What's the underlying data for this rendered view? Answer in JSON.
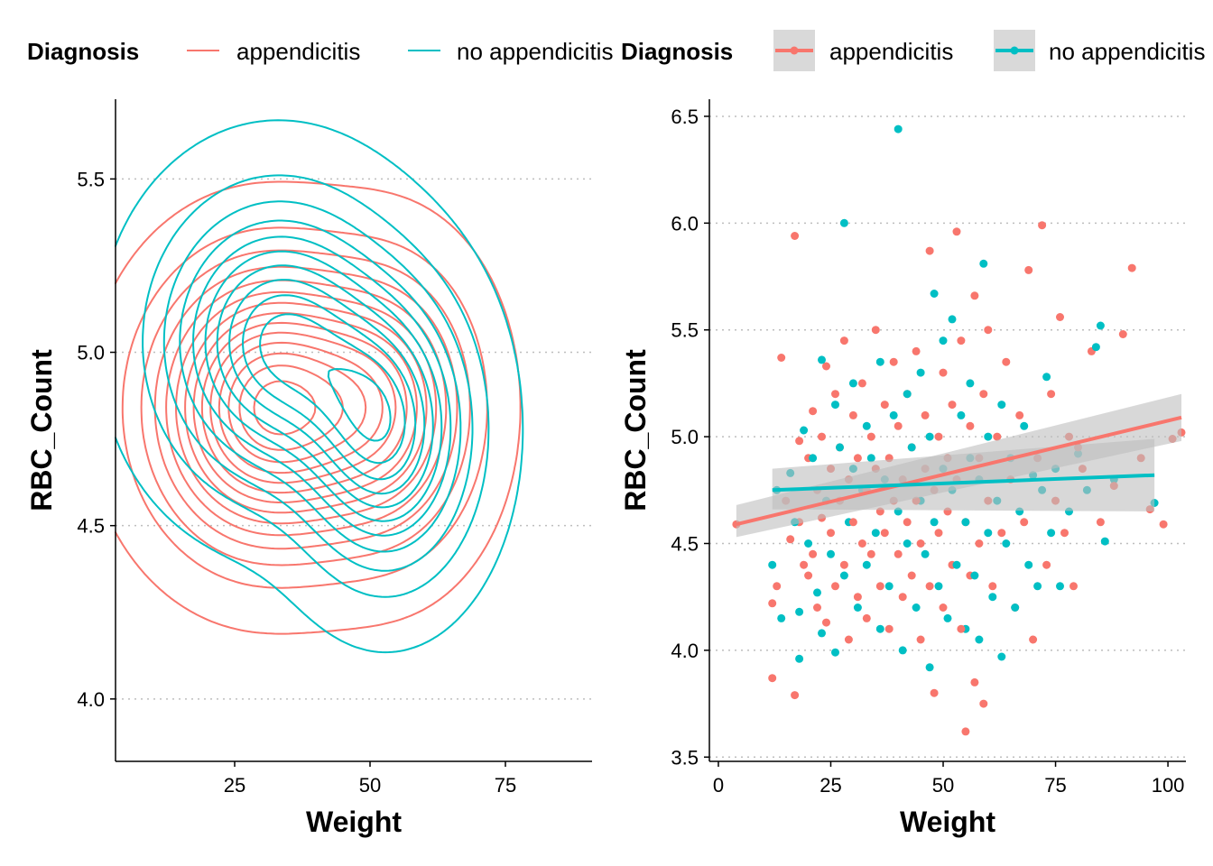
{
  "colors": {
    "appendicitis": "#F8766D",
    "no_appendicitis": "#00BFC4",
    "ribbon": "#BEBEBE",
    "grid": "#BEBEBE"
  },
  "chart_data": [
    {
      "type": "density_contour",
      "xlabel": "Weight",
      "ylabel": "RBC_Count",
      "xlim": [
        3,
        91
      ],
      "ylim": [
        3.82,
        5.73
      ],
      "xticks": [
        25,
        50,
        75
      ],
      "yticks": [
        4.0,
        4.5,
        5.0,
        5.5
      ],
      "grid": "horizontal dotted",
      "legend": {
        "title": "Diagnosis",
        "position": "top",
        "entries": [
          "appendicitis",
          "no appendicitis"
        ]
      },
      "series": [
        {
          "name": "appendicitis",
          "peaks": [
            {
              "x": 31,
              "y": 4.84,
              "sx": 12.5,
              "sy": 0.24,
              "w": 1.0
            },
            {
              "x": 53,
              "y": 4.84,
              "sx": 10,
              "sy": 0.24,
              "w": 0.55
            }
          ],
          "lo": 0.025,
          "hi": 0.95,
          "n": 14
        },
        {
          "name": "no appendicitis",
          "peaks": [
            {
              "x": 33,
              "y": 5.03,
              "sx": 12.5,
              "sy": 0.24,
              "w": 1.0
            },
            {
              "x": 53,
              "y": 4.77,
              "sx": 9.5,
              "sy": 0.24,
              "w": 0.95
            }
          ],
          "lo": 0.025,
          "hi": 0.95,
          "n": 11
        }
      ]
    },
    {
      "type": "scatter",
      "xlabel": "Weight",
      "ylabel": "RBC_Count",
      "xlim": [
        -2,
        104
      ],
      "ylim": [
        3.48,
        6.58
      ],
      "xticks": [
        0,
        25,
        50,
        75,
        100
      ],
      "yticks": [
        3.5,
        4.0,
        4.5,
        5.0,
        5.5,
        6.0,
        6.5
      ],
      "grid": "horizontal dotted",
      "legend": {
        "title": "Diagnosis",
        "position": "top",
        "entries": [
          "appendicitis",
          "no appendicitis"
        ]
      },
      "series": [
        {
          "name": "appendicitis",
          "fit": {
            "x": [
              4,
              103
            ],
            "y": [
              4.59,
              5.09
            ],
            "ci_lo": [
              4.53,
              4.98
            ],
            "ci_hi": [
              4.68,
              5.2
            ]
          },
          "points": [
            [
              4,
              4.59
            ],
            [
              12,
              3.87
            ],
            [
              12,
              4.22
            ],
            [
              13,
              4.3
            ],
            [
              14,
              5.37
            ],
            [
              15,
              4.7
            ],
            [
              16,
              4.52
            ],
            [
              17,
              5.94
            ],
            [
              17,
              3.79
            ],
            [
              18,
              4.98
            ],
            [
              18,
              4.6
            ],
            [
              19,
              4.4
            ],
            [
              20,
              4.35
            ],
            [
              20,
              4.9
            ],
            [
              21,
              5.12
            ],
            [
              21,
              4.45
            ],
            [
              22,
              4.75
            ],
            [
              22,
              4.2
            ],
            [
              23,
              5.0
            ],
            [
              23,
              4.62
            ],
            [
              24,
              4.13
            ],
            [
              24,
              5.33
            ],
            [
              25,
              4.85
            ],
            [
              25,
              4.55
            ],
            [
              26,
              5.2
            ],
            [
              26,
              4.3
            ],
            [
              27,
              4.95
            ],
            [
              27,
              4.7
            ],
            [
              28,
              4.4
            ],
            [
              28,
              5.45
            ],
            [
              29,
              4.05
            ],
            [
              29,
              4.8
            ],
            [
              30,
              4.6
            ],
            [
              30,
              5.1
            ],
            [
              31,
              4.25
            ],
            [
              31,
              4.9
            ],
            [
              32,
              5.25
            ],
            [
              32,
              4.5
            ],
            [
              33,
              4.75
            ],
            [
              33,
              4.15
            ],
            [
              34,
              5.0
            ],
            [
              34,
              4.45
            ],
            [
              35,
              5.5
            ],
            [
              35,
              4.85
            ],
            [
              36,
              4.3
            ],
            [
              36,
              4.65
            ],
            [
              37,
              5.15
            ],
            [
              37,
              4.55
            ],
            [
              38,
              4.9
            ],
            [
              38,
              4.1
            ],
            [
              39,
              4.7
            ],
            [
              39,
              5.35
            ],
            [
              40,
              4.45
            ],
            [
              40,
              5.05
            ],
            [
              41,
              4.8
            ],
            [
              41,
              4.25
            ],
            [
              42,
              5.2
            ],
            [
              42,
              4.6
            ],
            [
              43,
              4.95
            ],
            [
              43,
              4.35
            ],
            [
              44,
              5.4
            ],
            [
              44,
              4.7
            ],
            [
              45,
              4.5
            ],
            [
              45,
              4.05
            ],
            [
              46,
              5.1
            ],
            [
              46,
              4.85
            ],
            [
              47,
              4.3
            ],
            [
              47,
              5.87
            ],
            [
              48,
              4.75
            ],
            [
              48,
              3.8
            ],
            [
              49,
              5.0
            ],
            [
              49,
              4.55
            ],
            [
              50,
              4.2
            ],
            [
              50,
              5.3
            ],
            [
              51,
              4.65
            ],
            [
              51,
              4.9
            ],
            [
              52,
              5.15
            ],
            [
              52,
              4.4
            ],
            [
              53,
              5.96
            ],
            [
              53,
              4.8
            ],
            [
              54,
              4.1
            ],
            [
              54,
              5.45
            ],
            [
              55,
              3.62
            ],
            [
              55,
              4.6
            ],
            [
              56,
              5.05
            ],
            [
              56,
              4.35
            ],
            [
              57,
              5.66
            ],
            [
              57,
              3.85
            ],
            [
              58,
              4.9
            ],
            [
              58,
              4.5
            ],
            [
              59,
              5.2
            ],
            [
              59,
              3.75
            ],
            [
              60,
              4.7
            ],
            [
              60,
              5.5
            ],
            [
              61,
              4.3
            ],
            [
              62,
              5.0
            ],
            [
              63,
              4.55
            ],
            [
              64,
              5.35
            ],
            [
              65,
              4.8
            ],
            [
              66,
              4.2
            ],
            [
              67,
              5.1
            ],
            [
              68,
              4.6
            ],
            [
              69,
              5.78
            ],
            [
              70,
              4.05
            ],
            [
              71,
              4.9
            ],
            [
              72,
              5.99
            ],
            [
              73,
              4.4
            ],
            [
              74,
              5.2
            ],
            [
              75,
              4.7
            ],
            [
              76,
              5.56
            ],
            [
              77,
              4.55
            ],
            [
              78,
              5.0
            ],
            [
              79,
              4.3
            ],
            [
              80,
              4.95
            ],
            [
              81,
              4.85
            ],
            [
              83,
              5.4
            ],
            [
              85,
              4.6
            ],
            [
              88,
              4.77
            ],
            [
              90,
              5.48
            ],
            [
              92,
              5.79
            ],
            [
              94,
              4.9
            ],
            [
              96,
              4.66
            ],
            [
              99,
              4.59
            ],
            [
              101,
              4.99
            ],
            [
              103,
              5.02
            ]
          ]
        },
        {
          "name": "no appendicitis",
          "fit": {
            "x": [
              12,
              97
            ],
            "y": [
              4.75,
              4.82
            ],
            "ci_lo": [
              4.66,
              4.65
            ],
            "ci_hi": [
              4.85,
              4.99
            ]
          },
          "points": [
            [
              12,
              4.4
            ],
            [
              13,
              4.75
            ],
            [
              14,
              4.15
            ],
            [
              16,
              4.83
            ],
            [
              17,
              4.6
            ],
            [
              18,
              3.96
            ],
            [
              18,
              4.18
            ],
            [
              19,
              5.03
            ],
            [
              20,
              4.5
            ],
            [
              21,
              4.9
            ],
            [
              22,
              4.27
            ],
            [
              23,
              5.36
            ],
            [
              23,
              4.08
            ],
            [
              24,
              4.7
            ],
            [
              25,
              4.45
            ],
            [
              26,
              5.15
            ],
            [
              26,
              3.99
            ],
            [
              27,
              4.95
            ],
            [
              28,
              4.35
            ],
            [
              28,
              6.0
            ],
            [
              29,
              4.6
            ],
            [
              30,
              5.25
            ],
            [
              30,
              4.85
            ],
            [
              31,
              4.2
            ],
            [
              32,
              4.75
            ],
            [
              33,
              5.05
            ],
            [
              33,
              4.4
            ],
            [
              34,
              4.9
            ],
            [
              35,
              4.55
            ],
            [
              36,
              5.35
            ],
            [
              36,
              4.1
            ],
            [
              37,
              4.8
            ],
            [
              38,
              4.3
            ],
            [
              39,
              5.1
            ],
            [
              40,
              6.44
            ],
            [
              40,
              4.65
            ],
            [
              41,
              4.0
            ],
            [
              42,
              5.2
            ],
            [
              42,
              4.5
            ],
            [
              43,
              4.95
            ],
            [
              44,
              4.2
            ],
            [
              45,
              5.3
            ],
            [
              45,
              4.7
            ],
            [
              46,
              4.45
            ],
            [
              47,
              5.0
            ],
            [
              47,
              3.92
            ],
            [
              48,
              4.6
            ],
            [
              48,
              5.67
            ],
            [
              49,
              4.3
            ],
            [
              50,
              5.45
            ],
            [
              50,
              4.85
            ],
            [
              51,
              4.15
            ],
            [
              52,
              4.75
            ],
            [
              52,
              5.55
            ],
            [
              53,
              4.4
            ],
            [
              54,
              5.1
            ],
            [
              55,
              4.1
            ],
            [
              55,
              4.6
            ],
            [
              56,
              4.9
            ],
            [
              56,
              5.25
            ],
            [
              57,
              4.35
            ],
            [
              58,
              4.8
            ],
            [
              58,
              4.05
            ],
            [
              59,
              5.81
            ],
            [
              60,
              4.55
            ],
            [
              60,
              5.0
            ],
            [
              61,
              4.25
            ],
            [
              62,
              4.7
            ],
            [
              63,
              5.15
            ],
            [
              63,
              3.97
            ],
            [
              64,
              4.5
            ],
            [
              65,
              4.9
            ],
            [
              66,
              4.2
            ],
            [
              67,
              4.65
            ],
            [
              68,
              5.05
            ],
            [
              69,
              4.4
            ],
            [
              70,
              4.82
            ],
            [
              71,
              4.3
            ],
            [
              72,
              4.75
            ],
            [
              73,
              5.28
            ],
            [
              74,
              4.55
            ],
            [
              75,
              4.85
            ],
            [
              76,
              4.3
            ],
            [
              78,
              4.65
            ],
            [
              80,
              4.92
            ],
            [
              82,
              4.75
            ],
            [
              84,
              5.42
            ],
            [
              85,
              5.52
            ],
            [
              86,
              4.51
            ],
            [
              88,
              4.8
            ],
            [
              97,
              4.69
            ]
          ]
        }
      ]
    }
  ]
}
